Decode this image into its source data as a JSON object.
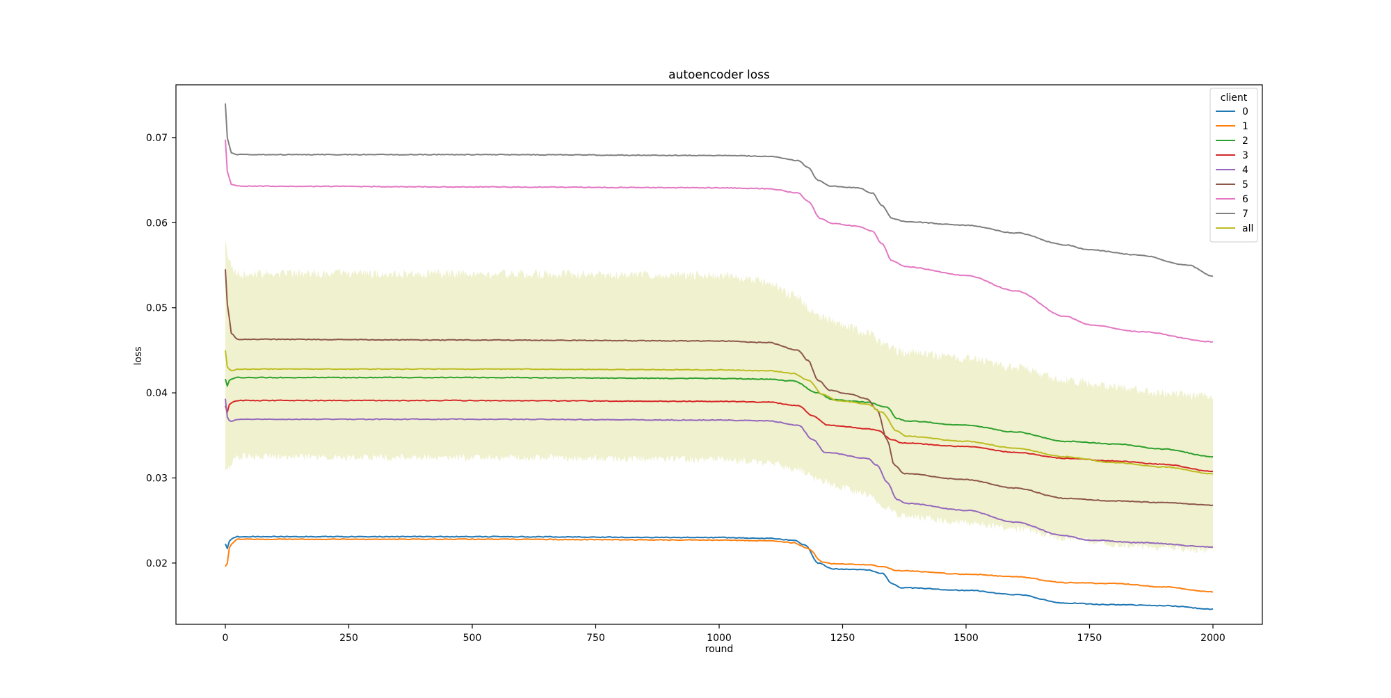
{
  "chart_data": {
    "type": "line",
    "title": "autoencoder loss",
    "xlabel": "round",
    "ylabel": "loss",
    "xlim": [
      -100,
      2100
    ],
    "ylim": [
      0.0128,
      0.0762
    ],
    "x_ticks": [
      0,
      250,
      500,
      750,
      1000,
      1250,
      1500,
      1750,
      2000
    ],
    "y_ticks": [
      0.02,
      0.03,
      0.04,
      0.05,
      0.06,
      0.07
    ],
    "y_tick_labels": [
      "0.02",
      "0.03",
      "0.04",
      "0.05",
      "0.06",
      "0.07"
    ],
    "grid": false,
    "legend": {
      "title": "client",
      "placement": "top-right"
    },
    "series": [
      {
        "name": "0",
        "color": "#1f77b4",
        "points": [
          [
            0,
            0.0223
          ],
          [
            2,
            0.0215
          ],
          [
            10,
            0.0228
          ],
          [
            25,
            0.0231
          ],
          [
            500,
            0.0231
          ],
          [
            1000,
            0.023
          ],
          [
            1100,
            0.0229
          ],
          [
            1150,
            0.0227
          ],
          [
            1175,
            0.0221
          ],
          [
            1200,
            0.02
          ],
          [
            1230,
            0.0193
          ],
          [
            1300,
            0.0192
          ],
          [
            1330,
            0.0188
          ],
          [
            1350,
            0.0176
          ],
          [
            1370,
            0.0171
          ],
          [
            1500,
            0.0168
          ],
          [
            1600,
            0.0163
          ],
          [
            1700,
            0.0153
          ],
          [
            1800,
            0.0151
          ],
          [
            1900,
            0.015
          ],
          [
            2000,
            0.0146
          ]
        ]
      },
      {
        "name": "1",
        "color": "#ff7f0e",
        "points": [
          [
            0,
            0.0196
          ],
          [
            3,
            0.0198
          ],
          [
            10,
            0.0222
          ],
          [
            25,
            0.0228
          ],
          [
            500,
            0.0228
          ],
          [
            1000,
            0.0227
          ],
          [
            1100,
            0.0226
          ],
          [
            1150,
            0.0224
          ],
          [
            1180,
            0.0217
          ],
          [
            1210,
            0.0201
          ],
          [
            1230,
            0.0199
          ],
          [
            1300,
            0.0198
          ],
          [
            1330,
            0.0196
          ],
          [
            1360,
            0.0191
          ],
          [
            1500,
            0.0187
          ],
          [
            1600,
            0.0184
          ],
          [
            1700,
            0.0177
          ],
          [
            1800,
            0.0176
          ],
          [
            1900,
            0.0172
          ],
          [
            2000,
            0.0166
          ]
        ]
      },
      {
        "name": "2",
        "color": "#2ca02c",
        "points": [
          [
            0,
            0.0416
          ],
          [
            3,
            0.0408
          ],
          [
            10,
            0.0416
          ],
          [
            25,
            0.0418
          ],
          [
            500,
            0.0418
          ],
          [
            1000,
            0.0417
          ],
          [
            1100,
            0.0416
          ],
          [
            1150,
            0.0414
          ],
          [
            1200,
            0.04
          ],
          [
            1230,
            0.0392
          ],
          [
            1300,
            0.0389
          ],
          [
            1340,
            0.0383
          ],
          [
            1360,
            0.037
          ],
          [
            1380,
            0.0367
          ],
          [
            1500,
            0.0362
          ],
          [
            1600,
            0.0354
          ],
          [
            1700,
            0.0343
          ],
          [
            1800,
            0.034
          ],
          [
            1900,
            0.0334
          ],
          [
            2000,
            0.0325
          ]
        ]
      },
      {
        "name": "3",
        "color": "#d62728",
        "points": [
          [
            0,
            0.0385
          ],
          [
            3,
            0.0377
          ],
          [
            10,
            0.0388
          ],
          [
            25,
            0.0391
          ],
          [
            500,
            0.0391
          ],
          [
            1000,
            0.039
          ],
          [
            1100,
            0.0389
          ],
          [
            1160,
            0.0385
          ],
          [
            1190,
            0.0373
          ],
          [
            1220,
            0.0362
          ],
          [
            1300,
            0.0358
          ],
          [
            1320,
            0.0356
          ],
          [
            1350,
            0.0345
          ],
          [
            1370,
            0.0341
          ],
          [
            1500,
            0.0337
          ],
          [
            1600,
            0.033
          ],
          [
            1700,
            0.0323
          ],
          [
            1800,
            0.032
          ],
          [
            1900,
            0.0316
          ],
          [
            2000,
            0.0308
          ]
        ]
      },
      {
        "name": "4",
        "color": "#9467bd",
        "points": [
          [
            0,
            0.0393
          ],
          [
            3,
            0.0372
          ],
          [
            10,
            0.0366
          ],
          [
            25,
            0.0369
          ],
          [
            500,
            0.0369
          ],
          [
            1000,
            0.0368
          ],
          [
            1100,
            0.0367
          ],
          [
            1160,
            0.0362
          ],
          [
            1190,
            0.0345
          ],
          [
            1215,
            0.033
          ],
          [
            1300,
            0.0323
          ],
          [
            1320,
            0.0315
          ],
          [
            1340,
            0.0295
          ],
          [
            1360,
            0.0275
          ],
          [
            1380,
            0.027
          ],
          [
            1500,
            0.0262
          ],
          [
            1600,
            0.0248
          ],
          [
            1700,
            0.0232
          ],
          [
            1750,
            0.0227
          ],
          [
            1850,
            0.0224
          ],
          [
            2000,
            0.0219
          ]
        ]
      },
      {
        "name": "5",
        "color": "#8c564b",
        "points": [
          [
            0,
            0.0545
          ],
          [
            5,
            0.05
          ],
          [
            12,
            0.047
          ],
          [
            25,
            0.0463
          ],
          [
            500,
            0.0462
          ],
          [
            1000,
            0.0461
          ],
          [
            1100,
            0.0459
          ],
          [
            1160,
            0.045
          ],
          [
            1180,
            0.0438
          ],
          [
            1200,
            0.0415
          ],
          [
            1225,
            0.0403
          ],
          [
            1260,
            0.0399
          ],
          [
            1300,
            0.0393
          ],
          [
            1320,
            0.038
          ],
          [
            1340,
            0.0345
          ],
          [
            1355,
            0.0315
          ],
          [
            1375,
            0.0305
          ],
          [
            1500,
            0.0298
          ],
          [
            1600,
            0.0288
          ],
          [
            1700,
            0.0276
          ],
          [
            1800,
            0.0273
          ],
          [
            1900,
            0.0271
          ],
          [
            2000,
            0.0268
          ]
        ]
      },
      {
        "name": "6",
        "color": "#e377c2",
        "points": [
          [
            0,
            0.0698
          ],
          [
            4,
            0.066
          ],
          [
            12,
            0.0645
          ],
          [
            25,
            0.0643
          ],
          [
            500,
            0.0642
          ],
          [
            1000,
            0.0641
          ],
          [
            1100,
            0.064
          ],
          [
            1160,
            0.0635
          ],
          [
            1180,
            0.0625
          ],
          [
            1205,
            0.0605
          ],
          [
            1230,
            0.0599
          ],
          [
            1280,
            0.0596
          ],
          [
            1310,
            0.059
          ],
          [
            1330,
            0.0575
          ],
          [
            1350,
            0.0555
          ],
          [
            1380,
            0.0548
          ],
          [
            1500,
            0.0538
          ],
          [
            1600,
            0.052
          ],
          [
            1700,
            0.049
          ],
          [
            1750,
            0.048
          ],
          [
            1850,
            0.0472
          ],
          [
            2000,
            0.046
          ]
        ]
      },
      {
        "name": "7",
        "color": "#7f7f7f",
        "points": [
          [
            0,
            0.074
          ],
          [
            4,
            0.07
          ],
          [
            12,
            0.0682
          ],
          [
            25,
            0.068
          ],
          [
            500,
            0.068
          ],
          [
            1000,
            0.0679
          ],
          [
            1100,
            0.0678
          ],
          [
            1160,
            0.0673
          ],
          [
            1180,
            0.0665
          ],
          [
            1200,
            0.065
          ],
          [
            1225,
            0.0643
          ],
          [
            1280,
            0.0641
          ],
          [
            1310,
            0.0635
          ],
          [
            1330,
            0.062
          ],
          [
            1350,
            0.0605
          ],
          [
            1380,
            0.0601
          ],
          [
            1500,
            0.0597
          ],
          [
            1600,
            0.0588
          ],
          [
            1700,
            0.0574
          ],
          [
            1750,
            0.0568
          ],
          [
            1850,
            0.0562
          ],
          [
            1950,
            0.055
          ],
          [
            2000,
            0.0537
          ]
        ]
      },
      {
        "name": "all",
        "color": "#bcbd22",
        "points": [
          [
            0,
            0.045
          ],
          [
            4,
            0.043
          ],
          [
            12,
            0.0426
          ],
          [
            25,
            0.0428
          ],
          [
            500,
            0.0428
          ],
          [
            1000,
            0.0427
          ],
          [
            1100,
            0.0426
          ],
          [
            1150,
            0.0423
          ],
          [
            1180,
            0.0415
          ],
          [
            1210,
            0.0398
          ],
          [
            1240,
            0.0391
          ],
          [
            1300,
            0.0387
          ],
          [
            1330,
            0.0377
          ],
          [
            1360,
            0.0355
          ],
          [
            1380,
            0.0349
          ],
          [
            1500,
            0.0343
          ],
          [
            1600,
            0.0335
          ],
          [
            1700,
            0.0325
          ],
          [
            1800,
            0.0318
          ],
          [
            1900,
            0.0313
          ],
          [
            2000,
            0.0305
          ]
        ]
      }
    ],
    "band": {
      "series": "all",
      "color": "#bcbd22",
      "opacity": 0.22,
      "upper": [
        [
          0,
          0.0582
        ],
        [
          5,
          0.0555
        ],
        [
          25,
          0.054
        ],
        [
          500,
          0.054
        ],
        [
          1000,
          0.0538
        ],
        [
          1100,
          0.053
        ],
        [
          1150,
          0.0515
        ],
        [
          1200,
          0.049
        ],
        [
          1250,
          0.048
        ],
        [
          1300,
          0.047
        ],
        [
          1340,
          0.0455
        ],
        [
          1370,
          0.0448
        ],
        [
          1500,
          0.044
        ],
        [
          1600,
          0.043
        ],
        [
          1700,
          0.0415
        ],
        [
          1800,
          0.0407
        ],
        [
          1900,
          0.04
        ],
        [
          2000,
          0.0395
        ]
      ],
      "lower": [
        [
          0,
          0.0308
        ],
        [
          5,
          0.0312
        ],
        [
          25,
          0.0325
        ],
        [
          500,
          0.0324
        ],
        [
          1000,
          0.0322
        ],
        [
          1100,
          0.0318
        ],
        [
          1160,
          0.031
        ],
        [
          1200,
          0.0298
        ],
        [
          1250,
          0.0288
        ],
        [
          1300,
          0.028
        ],
        [
          1340,
          0.0265
        ],
        [
          1370,
          0.0255
        ],
        [
          1500,
          0.0248
        ],
        [
          1600,
          0.024
        ],
        [
          1700,
          0.023
        ],
        [
          1800,
          0.0222
        ],
        [
          1900,
          0.0218
        ],
        [
          2000,
          0.0215
        ]
      ]
    }
  }
}
